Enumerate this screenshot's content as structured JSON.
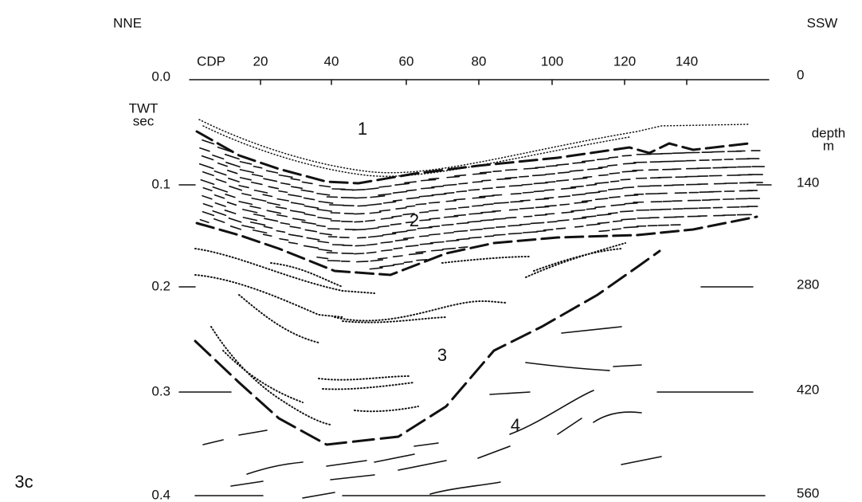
{
  "figure_label": "3c",
  "left_direction": "NNE",
  "right_direction": "SSW",
  "top_axis": {
    "label": "CDP",
    "ticks": [
      "20",
      "40",
      "60",
      "80",
      "100",
      "120",
      "140"
    ]
  },
  "left_axis": {
    "label_lines": [
      "TWT",
      "sec"
    ],
    "ticks": [
      "0.0",
      "0.1",
      "0.2",
      "0.3",
      "0.4"
    ]
  },
  "right_axis": {
    "label_lines": [
      "depth",
      "m"
    ],
    "ticks": [
      "0",
      "140",
      "280",
      "420",
      "560"
    ]
  },
  "units": [
    "1",
    "2",
    "3",
    "4"
  ]
}
